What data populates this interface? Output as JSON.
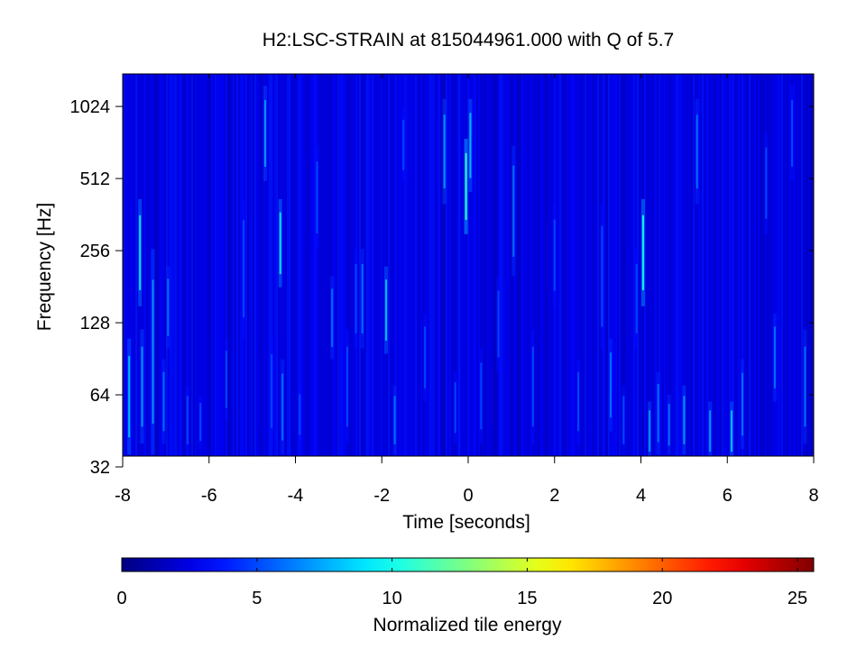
{
  "chart_data": {
    "type": "heatmap",
    "title": "H2:LSC-STRAIN at 815044961.000 with Q of 5.7",
    "xlabel": "Time [seconds]",
    "ylabel": "Frequency [Hz]",
    "xlim": [
      -8,
      8
    ],
    "ylim": [
      32,
      1400
    ],
    "yscale": "log2",
    "xticks": [
      -8,
      -6,
      -4,
      -2,
      0,
      2,
      4,
      6,
      8
    ],
    "yticks": [
      32,
      64,
      128,
      256,
      512,
      1024
    ],
    "grid": false,
    "colorbar": {
      "label": "Normalized tile energy",
      "range": [
        0,
        25.6
      ],
      "ticks": [
        0,
        5,
        10,
        15,
        20,
        25
      ],
      "colormap": "jet",
      "position": "bottom"
    },
    "background_energy": 2.5,
    "streaks": [
      {
        "t": -7.85,
        "f_low": 36,
        "f_high": 110,
        "energy": 8
      },
      {
        "t": -7.6,
        "f_low": 150,
        "f_high": 420,
        "energy": 9
      },
      {
        "t": -7.55,
        "f_low": 40,
        "f_high": 120,
        "energy": 7
      },
      {
        "t": -7.3,
        "f_low": 36,
        "f_high": 260,
        "energy": 7
      },
      {
        "t": -7.05,
        "f_low": 40,
        "f_high": 90,
        "energy": 6
      },
      {
        "t": -6.95,
        "f_low": 100,
        "f_high": 220,
        "energy": 6
      },
      {
        "t": -6.5,
        "f_low": 36,
        "f_high": 70,
        "energy": 5
      },
      {
        "t": -6.2,
        "f_low": 38,
        "f_high": 64,
        "energy": 5
      },
      {
        "t": -5.6,
        "f_low": 50,
        "f_high": 110,
        "energy": 5
      },
      {
        "t": -5.2,
        "f_low": 110,
        "f_high": 420,
        "energy": 5
      },
      {
        "t": -4.7,
        "f_low": 500,
        "f_high": 1250,
        "energy": 7
      },
      {
        "t": -4.55,
        "f_low": 40,
        "f_high": 110,
        "energy": 5
      },
      {
        "t": -4.35,
        "f_low": 180,
        "f_high": 420,
        "energy": 9
      },
      {
        "t": -4.3,
        "f_low": 36,
        "f_high": 90,
        "energy": 6
      },
      {
        "t": -3.9,
        "f_low": 40,
        "f_high": 70,
        "energy": 5
      },
      {
        "t": -3.5,
        "f_low": 260,
        "f_high": 700,
        "energy": 5
      },
      {
        "t": -3.15,
        "f_low": 90,
        "f_high": 200,
        "energy": 6
      },
      {
        "t": -2.8,
        "f_low": 40,
        "f_high": 120,
        "energy": 5
      },
      {
        "t": -2.6,
        "f_low": 100,
        "f_high": 260,
        "energy": 5
      },
      {
        "t": -2.45,
        "f_low": 100,
        "f_high": 260,
        "energy": 6
      },
      {
        "t": -1.9,
        "f_low": 95,
        "f_high": 220,
        "energy": 8
      },
      {
        "t": -1.7,
        "f_low": 36,
        "f_high": 70,
        "energy": 6
      },
      {
        "t": -1.5,
        "f_low": 500,
        "f_high": 1000,
        "energy": 5
      },
      {
        "t": -1.0,
        "f_low": 60,
        "f_high": 140,
        "energy": 5
      },
      {
        "t": -0.55,
        "f_low": 400,
        "f_high": 1100,
        "energy": 7
      },
      {
        "t": -0.3,
        "f_low": 40,
        "f_high": 80,
        "energy": 5
      },
      {
        "t": -0.05,
        "f_low": 300,
        "f_high": 750,
        "energy": 11
      },
      {
        "t": 0.05,
        "f_low": 450,
        "f_high": 1100,
        "energy": 8
      },
      {
        "t": 0.3,
        "f_low": 40,
        "f_high": 100,
        "energy": 5
      },
      {
        "t": 0.7,
        "f_low": 80,
        "f_high": 200,
        "energy": 5
      },
      {
        "t": 1.05,
        "f_low": 200,
        "f_high": 700,
        "energy": 6
      },
      {
        "t": 1.5,
        "f_low": 40,
        "f_high": 120,
        "energy": 5
      },
      {
        "t": 2.0,
        "f_low": 150,
        "f_high": 400,
        "energy": 5
      },
      {
        "t": 2.55,
        "f_low": 40,
        "f_high": 90,
        "energy": 5
      },
      {
        "t": 3.1,
        "f_low": 100,
        "f_high": 400,
        "energy": 5
      },
      {
        "t": 3.3,
        "f_low": 45,
        "f_high": 110,
        "energy": 6
      },
      {
        "t": 3.6,
        "f_low": 36,
        "f_high": 70,
        "energy": 5
      },
      {
        "t": 3.9,
        "f_low": 100,
        "f_high": 260,
        "energy": 5
      },
      {
        "t": 4.05,
        "f_low": 150,
        "f_high": 420,
        "energy": 10
      },
      {
        "t": 4.2,
        "f_low": 34,
        "f_high": 60,
        "energy": 7
      },
      {
        "t": 4.4,
        "f_low": 36,
        "f_high": 80,
        "energy": 6
      },
      {
        "t": 4.65,
        "f_low": 36,
        "f_high": 64,
        "energy": 6
      },
      {
        "t": 5.0,
        "f_low": 36,
        "f_high": 70,
        "energy": 7
      },
      {
        "t": 5.3,
        "f_low": 400,
        "f_high": 1100,
        "energy": 6
      },
      {
        "t": 5.6,
        "f_low": 34,
        "f_high": 60,
        "energy": 7
      },
      {
        "t": 6.1,
        "f_low": 34,
        "f_high": 60,
        "energy": 8
      },
      {
        "t": 6.35,
        "f_low": 38,
        "f_high": 90,
        "energy": 6
      },
      {
        "t": 6.9,
        "f_low": 300,
        "f_high": 800,
        "energy": 5
      },
      {
        "t": 7.1,
        "f_low": 60,
        "f_high": 140,
        "energy": 6
      },
      {
        "t": 7.5,
        "f_low": 500,
        "f_high": 1250,
        "energy": 5
      },
      {
        "t": 7.8,
        "f_low": 40,
        "f_high": 120,
        "energy": 6
      }
    ]
  }
}
